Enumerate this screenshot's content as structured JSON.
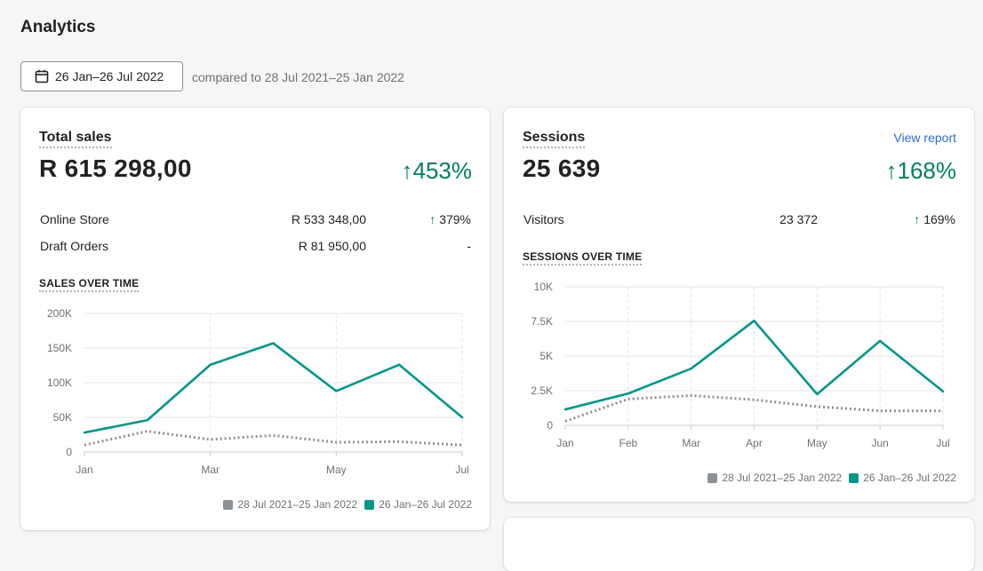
{
  "page": {
    "title": "Analytics"
  },
  "date_range": {
    "label": "26 Jan–26 Jul 2022",
    "compared_text": "compared to 28 Jul 2021–25 Jan 2022"
  },
  "colors": {
    "current": "#00968a",
    "previous": "#8c9196",
    "positive": "#007f5f",
    "link": "#2c6ecb"
  },
  "total_sales": {
    "title": "Total sales",
    "value": "R 615 298,00",
    "change": "453%",
    "rows": [
      {
        "label": "Online Store",
        "value": "R 533 348,00",
        "change": "379%",
        "arrow": "↑"
      },
      {
        "label": "Draft Orders",
        "value": "R 81 950,00",
        "change": "-",
        "arrow": ""
      }
    ],
    "section_label": "SALES OVER TIME",
    "legend": {
      "previous": "28 Jul 2021–25 Jan 2022",
      "current": "26 Jan–26 Jul 2022"
    }
  },
  "sessions": {
    "title": "Sessions",
    "view_report": "View report",
    "value": "25 639",
    "change": "168%",
    "rows": [
      {
        "label": "Visitors",
        "value": "23 372",
        "change": "169%",
        "arrow": "↑"
      }
    ],
    "section_label": "SESSIONS OVER TIME",
    "legend": {
      "previous": "28 Jul 2021–25 Jan 2022",
      "current": "26 Jan–26 Jul 2022"
    }
  },
  "chart_data": [
    {
      "type": "line",
      "title": "SALES OVER TIME",
      "x_tick_labels": [
        "Jan",
        "Mar",
        "May",
        "Jul"
      ],
      "y_tick_labels": [
        "0",
        "50K",
        "100K",
        "150K",
        "200K"
      ],
      "ylim": [
        0,
        200000
      ],
      "grid": true,
      "legend_placement": "bottom-right",
      "series": [
        {
          "name": "28 Jul 2021–25 Jan 2022",
          "style": "dotted",
          "x": [
            0,
            1,
            2,
            3,
            4,
            5,
            6
          ],
          "values": [
            10000,
            30000,
            18000,
            24000,
            14000,
            15000,
            10000
          ]
        },
        {
          "name": "26 Jan–26 Jul 2022",
          "style": "solid",
          "x": [
            0,
            1,
            2,
            3,
            4,
            5,
            6
          ],
          "values": [
            28000,
            46000,
            126000,
            157000,
            88000,
            126000,
            50000
          ]
        }
      ]
    },
    {
      "type": "line",
      "title": "SESSIONS OVER TIME",
      "categories": [
        "Jan",
        "Feb",
        "Mar",
        "Apr",
        "May",
        "Jun",
        "Jul"
      ],
      "y_tick_labels": [
        "0",
        "2.5K",
        "5K",
        "7.5K",
        "10K"
      ],
      "ylim": [
        0,
        10000
      ],
      "grid": true,
      "legend_placement": "bottom-right",
      "series": [
        {
          "name": "28 Jul 2021–25 Jan 2022",
          "style": "dotted",
          "values": [
            300,
            1900,
            2150,
            1850,
            1350,
            1050,
            1050
          ]
        },
        {
          "name": "26 Jan–26 Jul 2022",
          "style": "solid",
          "values": [
            1150,
            2300,
            4100,
            7550,
            2250,
            6100,
            2450
          ]
        }
      ]
    }
  ]
}
